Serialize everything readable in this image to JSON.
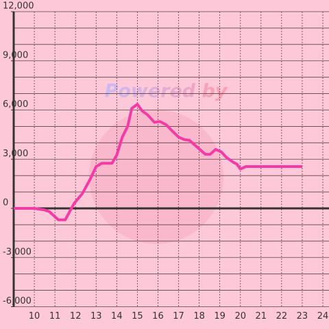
{
  "chart_data": {
    "type": "line",
    "watermark": "Powered by",
    "x": [
      9,
      10,
      10.5,
      10.73,
      11.17,
      11.5,
      11.93,
      12.33,
      12.7,
      13,
      13.27,
      13.77,
      14,
      14.27,
      14.53,
      14.73,
      15,
      15.23,
      15.5,
      15.83,
      16.1,
      16.4,
      16.67,
      17,
      17.27,
      17.53,
      17.8,
      18.07,
      18.3,
      18.53,
      18.8,
      19.07,
      19.33,
      19.67,
      19.83,
      20,
      20.27,
      23
    ],
    "series": [
      {
        "color": "#f43aa6",
        "values": [
          0,
          0,
          -100,
          -200,
          -700,
          -700,
          300,
          900,
          1750,
          2550,
          2750,
          2750,
          3250,
          4350,
          5000,
          6100,
          6350,
          5950,
          5700,
          5250,
          5300,
          5100,
          4750,
          4350,
          4200,
          4150,
          3850,
          3550,
          3300,
          3300,
          3600,
          3450,
          3100,
          2800,
          2700,
          2400,
          2550,
          2550
        ]
      }
    ],
    "xlim": [
      9,
      24.3
    ],
    "xticks": [
      10,
      11,
      12,
      13,
      14,
      15,
      16,
      17,
      18,
      19,
      20,
      21,
      22,
      23,
      24
    ],
    "ylim": [
      -6000,
      12000
    ],
    "yticks": [
      {
        "value": -6000,
        "label": "-6,000"
      },
      {
        "value": -3000,
        "label": "-3,000"
      },
      0,
      {
        "value": 3000,
        "label": "3,000"
      },
      {
        "value": 6000,
        "label": "6,000"
      },
      {
        "value": 9000,
        "label": "9,000"
      },
      {
        "value": 12000,
        "label": "12,000"
      }
    ],
    "y_grid": [
      -5000,
      -4000,
      -2000,
      -1000,
      1000,
      2000,
      4000,
      5000,
      7000,
      8000,
      10000,
      11000
    ],
    "grid": true
  }
}
